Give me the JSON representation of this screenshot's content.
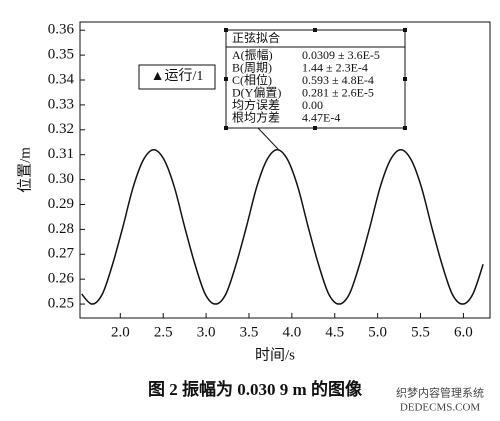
{
  "chart_data": {
    "type": "line",
    "x_label": "时间/s",
    "y_label": "位置/m",
    "caption": "图 2   振幅为 0.030 9 m 的图像",
    "watermark": [
      "织梦内容管理系统",
      "DEDECMS.COM"
    ],
    "button": "▲运行/1",
    "annotation": {
      "title": "正弦拟合",
      "rows": [
        [
          "A(振幅)",
          "0.0309 ± 3.6E-5"
        ],
        [
          "B(周期)",
          "1.44 ± 2.3E-4"
        ],
        [
          "C(相位)",
          "0.593 ± 4.8E-4"
        ],
        [
          "D(Y偏置)",
          "0.281 ± 2.6E-5"
        ],
        [
          "均方误差",
          "0.00"
        ],
        [
          "根均方差",
          "4.47E-4"
        ]
      ]
    },
    "x": [
      1.55,
      1.67,
      1.79,
      1.91,
      2.03,
      2.15,
      2.27,
      2.39,
      2.51,
      2.63,
      2.75,
      2.87,
      2.99,
      3.11,
      3.23,
      3.35,
      3.47,
      3.59,
      3.71,
      3.83,
      3.95,
      4.07,
      4.19,
      4.31,
      4.43,
      4.55,
      4.67,
      4.79,
      4.91,
      5.03,
      5.15,
      5.27,
      5.39,
      5.51,
      5.63,
      5.75,
      5.87,
      5.99,
      6.11,
      6.23
    ],
    "series": [
      {
        "color": "#111111",
        "values": [
          0.254,
          0.25,
          0.254,
          0.266,
          0.281,
          0.297,
          0.308,
          0.312,
          0.308,
          0.297,
          0.281,
          0.266,
          0.254,
          0.25,
          0.254,
          0.266,
          0.281,
          0.297,
          0.308,
          0.312,
          0.308,
          0.297,
          0.281,
          0.266,
          0.254,
          0.25,
          0.254,
          0.266,
          0.281,
          0.297,
          0.308,
          0.312,
          0.308,
          0.297,
          0.281,
          0.266,
          0.254,
          0.25,
          0.254,
          0.266
        ]
      }
    ],
    "xlim": [
      1.53,
      6.31
    ],
    "ylim": [
      0.2444,
      0.3633
    ],
    "xticks": [
      {
        "value": 2,
        "label": "2.0"
      },
      2.5,
      {
        "value": 3,
        "label": "3.0"
      },
      3.5,
      {
        "value": 4,
        "label": "4.0"
      },
      4.5,
      {
        "value": 5,
        "label": "5.0"
      },
      5.5,
      {
        "value": 6,
        "label": "6.0"
      }
    ],
    "yticks": [
      0.25,
      0.26,
      0.27,
      0.28,
      0.29,
      {
        "value": 0.3,
        "label": "0.30"
      },
      0.31,
      0.32,
      0.33,
      0.34,
      0.35,
      0.36
    ],
    "grid": false
  }
}
